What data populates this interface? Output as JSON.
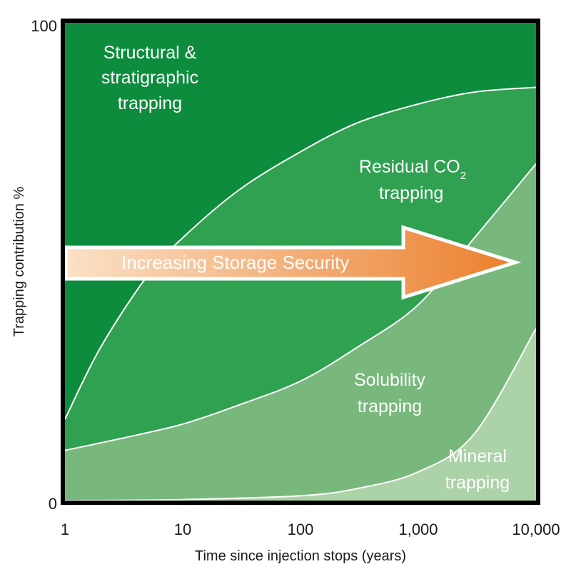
{
  "chart_data": {
    "type": "area",
    "xlabel": "Time since injection stops (years)",
    "ylabel": "Trapping contribution %",
    "x_scale": "log",
    "xlim": [
      1,
      10000
    ],
    "ylim": [
      0,
      100
    ],
    "x_ticks": [
      {
        "value": 1,
        "label": "1"
      },
      {
        "value": 10,
        "label": "10"
      },
      {
        "value": 100,
        "label": "100"
      },
      {
        "value": 1000,
        "label": "1,000"
      },
      {
        "value": 10000,
        "label": "10,000"
      }
    ],
    "y_ticks": [
      {
        "value": 0,
        "label": "0"
      },
      {
        "value": 100,
        "label": "100"
      }
    ],
    "grid": false,
    "boundaries": [
      {
        "name": "structural-residual",
        "points": [
          [
            1,
            17
          ],
          [
            2,
            32
          ],
          [
            5,
            47
          ],
          [
            10,
            55
          ],
          [
            30,
            65
          ],
          [
            100,
            73
          ],
          [
            300,
            79
          ],
          [
            1000,
            83
          ],
          [
            3000,
            85.5
          ],
          [
            10000,
            86.5
          ]
        ]
      },
      {
        "name": "residual-solubility",
        "points": [
          [
            1,
            10.5
          ],
          [
            3,
            13
          ],
          [
            10,
            16
          ],
          [
            30,
            20
          ],
          [
            100,
            25
          ],
          [
            300,
            32
          ],
          [
            1000,
            41
          ],
          [
            3000,
            55
          ],
          [
            10000,
            70.5
          ]
        ]
      },
      {
        "name": "solubility-mineral",
        "points": [
          [
            1,
            0
          ],
          [
            10,
            0.2
          ],
          [
            100,
            1
          ],
          [
            300,
            2.5
          ],
          [
            1000,
            6
          ],
          [
            3000,
            14
          ],
          [
            10000,
            36
          ]
        ]
      }
    ],
    "series": [
      {
        "label_lines": [
          "Structural &",
          "stratigraphic",
          "trapping"
        ],
        "color": "#0c8c3c"
      },
      {
        "label_lines": [
          "Residual CO",
          "trapping"
        ],
        "label_subscript": "2",
        "color": "#2fa150"
      },
      {
        "label_lines": [
          "Solubility",
          "trapping"
        ],
        "color": "#78b87c"
      },
      {
        "label_lines": [
          "Mineral",
          "trapping"
        ],
        "color": "#acd2a8"
      }
    ],
    "annotations": [
      {
        "text": "Increasing Storage Security",
        "type": "arrow",
        "gradient_from": "#fbe1c8",
        "gradient_to": "#eb7f2c"
      }
    ]
  }
}
